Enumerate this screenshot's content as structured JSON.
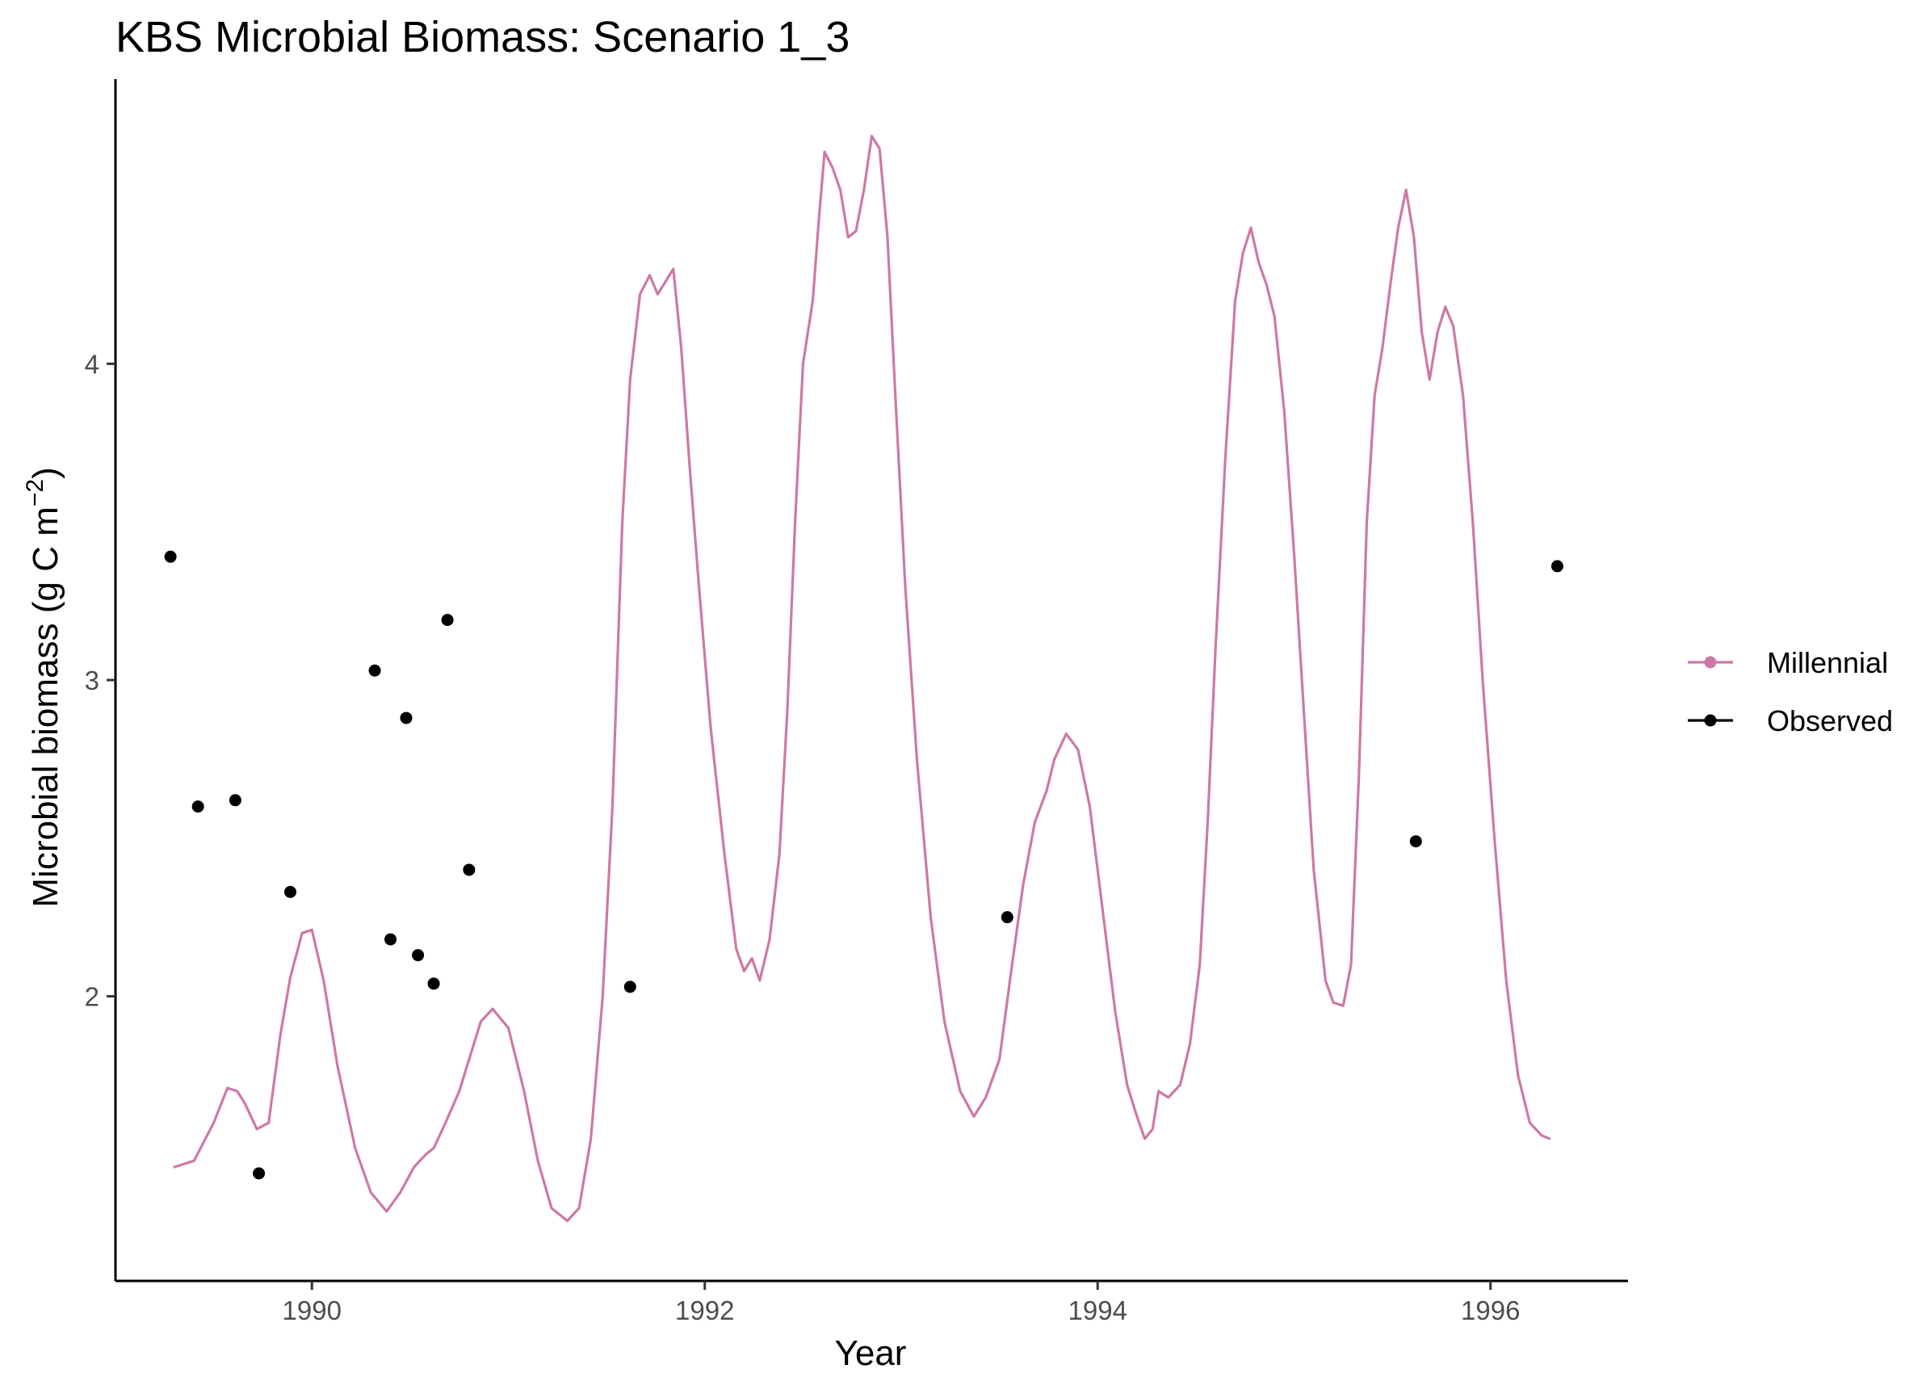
{
  "chart_data": {
    "type": "line",
    "title": "KBS Microbial Biomass: Scenario  1_3",
    "xlabel": "Year",
    "ylabel": "Microbial biomass (g C m",
    "ylabel_sup": "−2",
    "ylabel_close": ")",
    "xlim": [
      1989.0,
      1996.7
    ],
    "ylim": [
      1.1,
      4.9
    ],
    "xticks": [
      1990,
      1992,
      1994,
      1996
    ],
    "yticks": [
      2,
      3,
      4
    ],
    "grid": false,
    "legend_position": "right",
    "series": [
      {
        "name": "Millennial",
        "kind": "line",
        "color": "#cc79a7",
        "points": [
          [
            1989.3,
            1.46
          ],
          [
            1989.4,
            1.48
          ],
          [
            1989.5,
            1.6
          ],
          [
            1989.57,
            1.71
          ],
          [
            1989.62,
            1.7
          ],
          [
            1989.66,
            1.66
          ],
          [
            1989.72,
            1.58
          ],
          [
            1989.78,
            1.6
          ],
          [
            1989.84,
            1.88
          ],
          [
            1989.89,
            2.06
          ],
          [
            1989.95,
            2.2
          ],
          [
            1990.0,
            2.21
          ],
          [
            1990.06,
            2.05
          ],
          [
            1990.13,
            1.78
          ],
          [
            1990.22,
            1.52
          ],
          [
            1990.3,
            1.38
          ],
          [
            1990.38,
            1.32
          ],
          [
            1990.45,
            1.38
          ],
          [
            1990.52,
            1.46
          ],
          [
            1990.58,
            1.5
          ],
          [
            1990.62,
            1.52
          ],
          [
            1990.68,
            1.6
          ],
          [
            1990.75,
            1.7
          ],
          [
            1990.8,
            1.8
          ],
          [
            1990.86,
            1.92
          ],
          [
            1990.92,
            1.96
          ],
          [
            1991.0,
            1.9
          ],
          [
            1991.08,
            1.7
          ],
          [
            1991.15,
            1.48
          ],
          [
            1991.22,
            1.33
          ],
          [
            1991.3,
            1.29
          ],
          [
            1991.36,
            1.33
          ],
          [
            1991.42,
            1.55
          ],
          [
            1991.48,
            2.0
          ],
          [
            1991.53,
            2.6
          ],
          [
            1991.58,
            3.5
          ],
          [
            1991.62,
            3.95
          ],
          [
            1991.67,
            4.22
          ],
          [
            1991.72,
            4.28
          ],
          [
            1991.76,
            4.22
          ],
          [
            1991.8,
            4.26
          ],
          [
            1991.84,
            4.3
          ],
          [
            1991.88,
            4.05
          ],
          [
            1991.92,
            3.7
          ],
          [
            1991.97,
            3.3
          ],
          [
            1992.03,
            2.85
          ],
          [
            1992.1,
            2.45
          ],
          [
            1992.16,
            2.15
          ],
          [
            1992.2,
            2.08
          ],
          [
            1992.24,
            2.12
          ],
          [
            1992.28,
            2.05
          ],
          [
            1992.33,
            2.18
          ],
          [
            1992.38,
            2.45
          ],
          [
            1992.42,
            2.9
          ],
          [
            1992.46,
            3.5
          ],
          [
            1992.5,
            4.0
          ],
          [
            1992.55,
            4.2
          ],
          [
            1992.58,
            4.45
          ],
          [
            1992.61,
            4.67
          ],
          [
            1992.65,
            4.62
          ],
          [
            1992.69,
            4.55
          ],
          [
            1992.73,
            4.4
          ],
          [
            1992.77,
            4.42
          ],
          [
            1992.81,
            4.55
          ],
          [
            1992.85,
            4.72
          ],
          [
            1992.89,
            4.68
          ],
          [
            1992.93,
            4.4
          ],
          [
            1992.97,
            3.9
          ],
          [
            1993.02,
            3.3
          ],
          [
            1993.08,
            2.75
          ],
          [
            1993.15,
            2.25
          ],
          [
            1993.22,
            1.92
          ],
          [
            1993.3,
            1.7
          ],
          [
            1993.37,
            1.62
          ],
          [
            1993.43,
            1.68
          ],
          [
            1993.5,
            1.8
          ],
          [
            1993.56,
            2.08
          ],
          [
            1993.62,
            2.35
          ],
          [
            1993.68,
            2.55
          ],
          [
            1993.74,
            2.65
          ],
          [
            1993.78,
            2.75
          ],
          [
            1993.84,
            2.83
          ],
          [
            1993.9,
            2.78
          ],
          [
            1993.96,
            2.6
          ],
          [
            1994.03,
            2.25
          ],
          [
            1994.09,
            1.95
          ],
          [
            1994.15,
            1.72
          ],
          [
            1994.2,
            1.62
          ],
          [
            1994.24,
            1.55
          ],
          [
            1994.28,
            1.58
          ],
          [
            1994.31,
            1.7
          ],
          [
            1994.36,
            1.68
          ],
          [
            1994.42,
            1.72
          ],
          [
            1994.47,
            1.85
          ],
          [
            1994.52,
            2.1
          ],
          [
            1994.56,
            2.55
          ],
          [
            1994.6,
            3.1
          ],
          [
            1994.65,
            3.7
          ],
          [
            1994.7,
            4.2
          ],
          [
            1994.74,
            4.35
          ],
          [
            1994.78,
            4.43
          ],
          [
            1994.82,
            4.32
          ],
          [
            1994.86,
            4.25
          ],
          [
            1994.9,
            4.15
          ],
          [
            1994.95,
            3.85
          ],
          [
            1995.0,
            3.4
          ],
          [
            1995.05,
            2.9
          ],
          [
            1995.1,
            2.4
          ],
          [
            1995.16,
            2.05
          ],
          [
            1995.2,
            1.98
          ],
          [
            1995.25,
            1.97
          ],
          [
            1995.29,
            2.1
          ],
          [
            1995.33,
            2.7
          ],
          [
            1995.37,
            3.5
          ],
          [
            1995.41,
            3.9
          ],
          [
            1995.45,
            4.05
          ],
          [
            1995.49,
            4.25
          ],
          [
            1995.53,
            4.43
          ],
          [
            1995.57,
            4.55
          ],
          [
            1995.61,
            4.4
          ],
          [
            1995.65,
            4.1
          ],
          [
            1995.69,
            3.95
          ],
          [
            1995.73,
            4.1
          ],
          [
            1995.77,
            4.18
          ],
          [
            1995.81,
            4.12
          ],
          [
            1995.86,
            3.9
          ],
          [
            1995.91,
            3.5
          ],
          [
            1995.96,
            3.0
          ],
          [
            1996.02,
            2.5
          ],
          [
            1996.08,
            2.05
          ],
          [
            1996.14,
            1.75
          ],
          [
            1996.2,
            1.6
          ],
          [
            1996.26,
            1.56
          ],
          [
            1996.3,
            1.55
          ]
        ]
      },
      {
        "name": "Observed",
        "kind": "points",
        "color": "#000000",
        "points": [
          [
            1989.28,
            3.39
          ],
          [
            1989.42,
            2.6
          ],
          [
            1989.61,
            2.62
          ],
          [
            1989.73,
            1.44
          ],
          [
            1989.89,
            2.33
          ],
          [
            1990.32,
            3.03
          ],
          [
            1990.4,
            2.18
          ],
          [
            1990.48,
            2.88
          ],
          [
            1990.54,
            2.13
          ],
          [
            1990.62,
            2.04
          ],
          [
            1990.69,
            3.19
          ],
          [
            1990.8,
            2.4
          ],
          [
            1991.62,
            2.03
          ],
          [
            1993.54,
            2.25
          ],
          [
            1995.62,
            2.49
          ],
          [
            1996.34,
            3.36
          ]
        ]
      }
    ]
  }
}
